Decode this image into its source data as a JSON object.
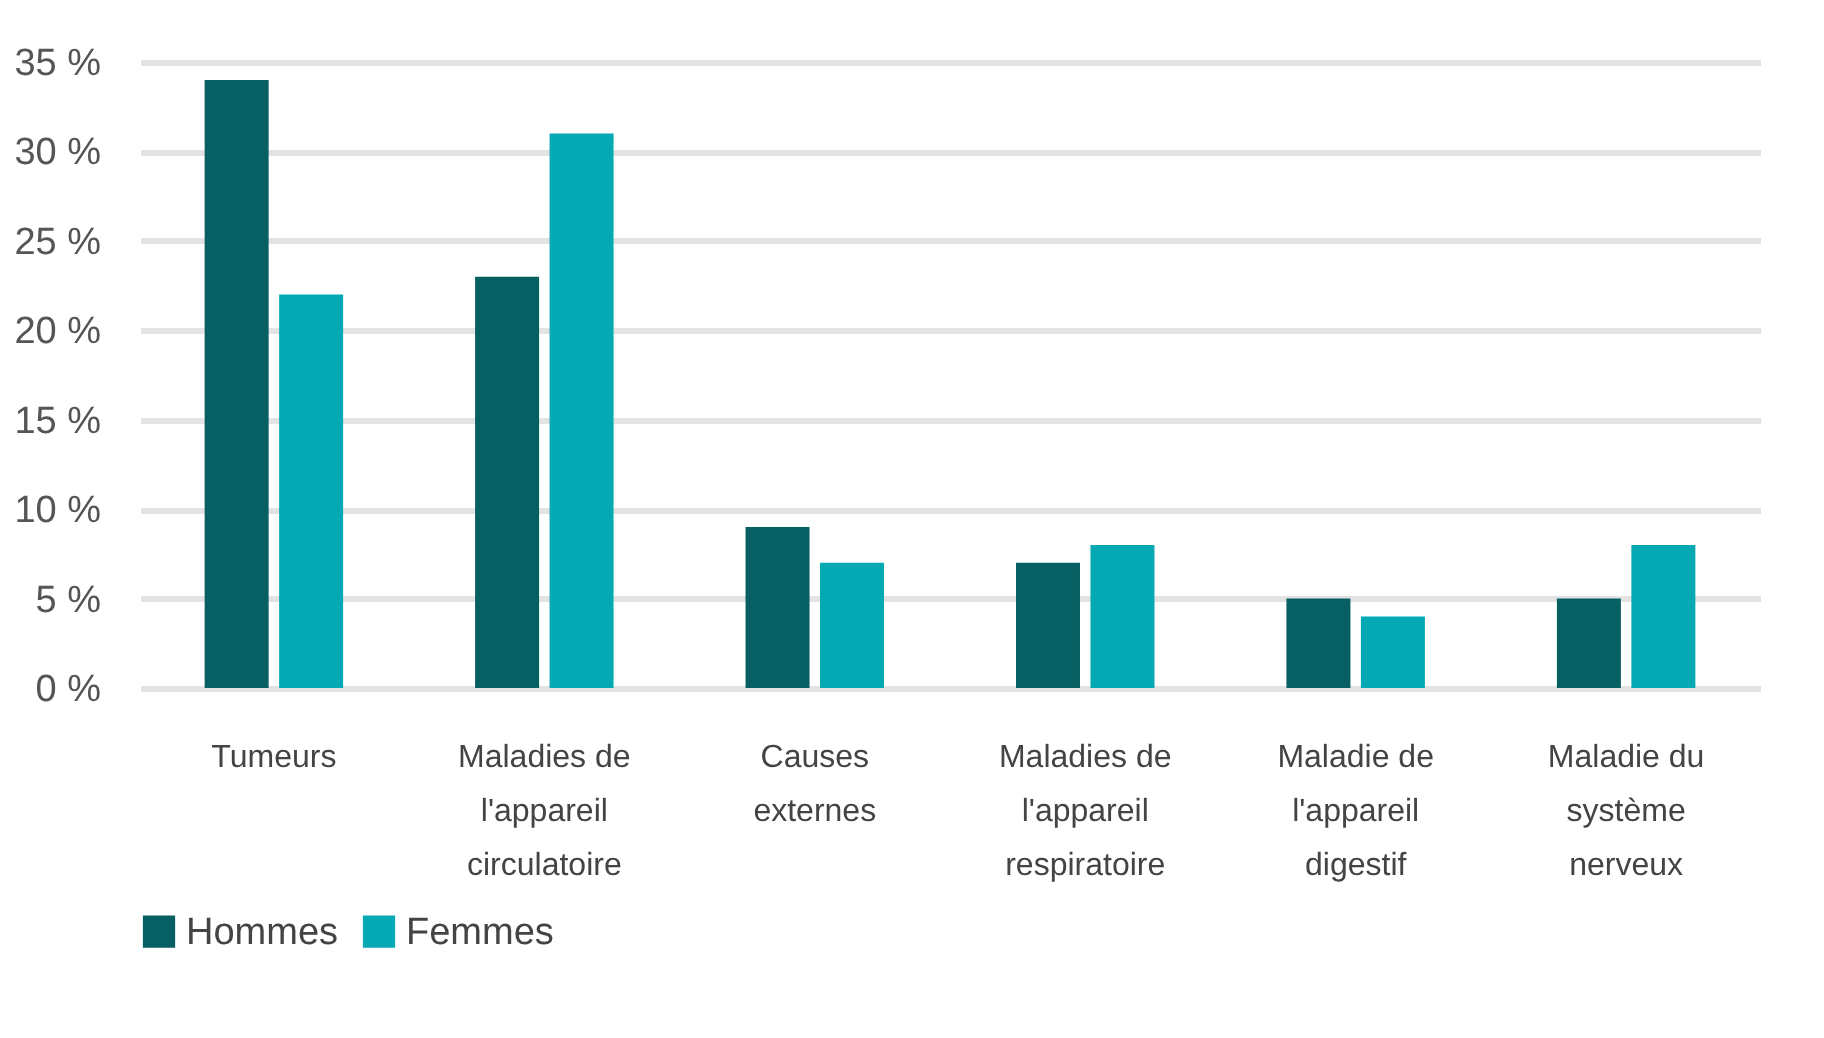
{
  "chart_data": {
    "type": "bar",
    "categories": [
      "Tumeurs",
      "Maladies de l'appareil circulatoire",
      "Causes externes",
      "Maladies de l'appareil respiratoire",
      "Maladie de l'appareil digestif",
      "Maladie du système nerveux"
    ],
    "series": [
      {
        "name": "Hommes",
        "color": "#065f62",
        "values": [
          34,
          23,
          9,
          7,
          5,
          5
        ]
      },
      {
        "name": "Femmes",
        "color": "#05a9b3",
        "values": [
          22,
          31,
          7,
          8,
          4,
          8
        ]
      }
    ],
    "ylim": [
      0,
      35
    ],
    "yticks": [
      {
        "value": 0,
        "label": "0 %"
      },
      {
        "value": 5,
        "label": "5 %"
      },
      {
        "value": 10,
        "label": "10 %"
      },
      {
        "value": 15,
        "label": "15 %"
      },
      {
        "value": 20,
        "label": "20 %"
      },
      {
        "value": 25,
        "label": "25 %"
      },
      {
        "value": 30,
        "label": "30 %"
      },
      {
        "value": 35,
        "label": "35 %"
      }
    ],
    "grid": "y",
    "legend": "bottom"
  }
}
